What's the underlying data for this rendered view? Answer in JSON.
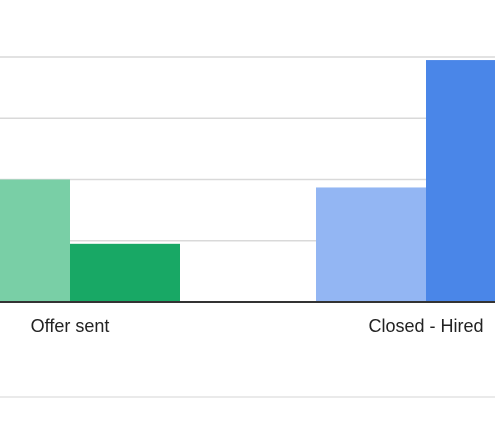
{
  "colors": {
    "gridline": "#d9d9d9",
    "baseline": "#333333",
    "divider": "#e3e3e3",
    "label_text": "#222222"
  },
  "chart_data": {
    "type": "bar",
    "categories": [
      "Offer sent",
      "Closed - Hired"
    ],
    "series": [
      {
        "values": [
          2,
          1.87
        ],
        "colors": [
          "#79cfa6",
          "#93b6f3"
        ]
      },
      {
        "values": [
          0.95,
          3.95
        ],
        "colors": [
          "#18a865",
          "#4a86e8"
        ]
      }
    ],
    "ylim": [
      0,
      4
    ],
    "grid": true,
    "legend": "none"
  }
}
